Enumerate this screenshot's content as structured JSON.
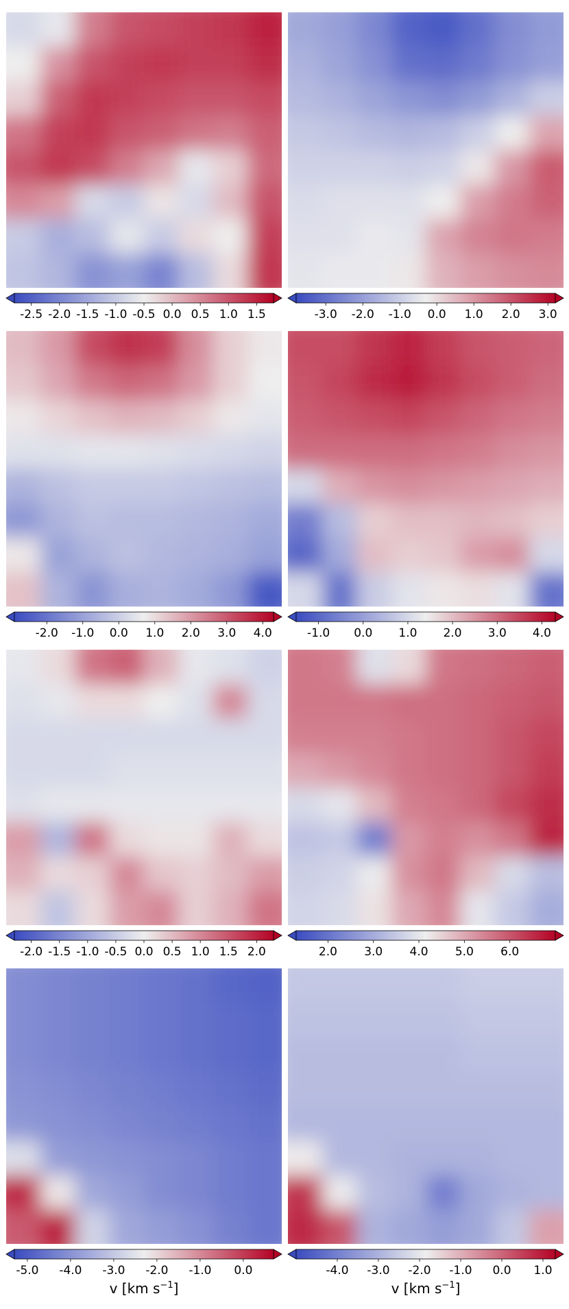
{
  "colormap": {
    "name": "coolwarm",
    "low_color": "#3b4cc0",
    "mid_color": "#eeeeee",
    "high_color": "#b40426"
  },
  "chart_data": [
    {
      "type": "heatmap",
      "title": "",
      "colorbar": {
        "vmin": -2.8,
        "vmax": 1.8,
        "extend": "both",
        "ticks": [
          -2.5,
          -2.0,
          -1.5,
          -1.0,
          -0.5,
          0.0,
          0.5,
          1.0,
          1.5
        ],
        "tick_labels": [
          "-2.5",
          "-2.0",
          "-1.5",
          "-1.0",
          "-0.5",
          "0.0",
          "0.5",
          "1.0",
          "1.5"
        ],
        "label": ""
      },
      "field": [
        [
          -0.8,
          -0.6,
          0.6,
          1.0,
          1.1,
          1.2,
          1.3,
          1.5
        ],
        [
          -0.5,
          0.4,
          1.0,
          1.2,
          1.3,
          1.2,
          1.2,
          1.4
        ],
        [
          -0.2,
          0.9,
          1.3,
          1.2,
          1.1,
          1.0,
          1.0,
          1.1
        ],
        [
          0.7,
          1.2,
          1.3,
          1.0,
          0.9,
          0.7,
          0.6,
          0.9
        ],
        [
          1.0,
          1.3,
          1.1,
          0.6,
          0.2,
          -0.6,
          -0.2,
          0.8
        ],
        [
          0.5,
          0.3,
          -0.8,
          -1.0,
          -0.4,
          -0.8,
          0.0,
          1.0
        ],
        [
          -1.0,
          -1.4,
          -1.2,
          -0.6,
          -1.0,
          -0.3,
          -0.5,
          1.2
        ],
        [
          -1.1,
          -1.3,
          -1.8,
          -1.6,
          -2.0,
          -1.2,
          -0.3,
          1.3
        ]
      ]
    },
    {
      "type": "heatmap",
      "title": "",
      "colorbar": {
        "vmin": -3.8,
        "vmax": 3.2,
        "extend": "both",
        "ticks": [
          -3.0,
          -2.0,
          -1.0,
          0.0,
          1.0,
          2.0,
          3.0
        ],
        "tick_labels": [
          "-3.0",
          "-2.0",
          "-1.0",
          "0.0",
          "1.0",
          "2.0",
          "3.0"
        ],
        "label": ""
      },
      "field": [
        [
          -1.8,
          -2.0,
          -2.5,
          -3.3,
          -3.5,
          -3.0,
          -2.4,
          -2.1
        ],
        [
          -1.6,
          -1.9,
          -2.3,
          -3.0,
          -3.1,
          -2.8,
          -2.3,
          -2.0
        ],
        [
          -1.4,
          -1.6,
          -1.9,
          -2.2,
          -2.4,
          -2.1,
          -1.6,
          -1.0
        ],
        [
          -1.1,
          -1.2,
          -1.4,
          -1.5,
          -1.4,
          -1.0,
          -0.3,
          0.8
        ],
        [
          -0.9,
          -0.9,
          -0.9,
          -1.0,
          -0.9,
          -0.2,
          1.0,
          1.9
        ],
        [
          -0.7,
          -0.6,
          -0.6,
          -0.6,
          -0.3,
          0.9,
          1.4,
          1.8
        ],
        [
          -0.6,
          -0.6,
          -0.4,
          -0.5,
          0.8,
          1.3,
          1.5,
          1.4
        ],
        [
          -0.5,
          -0.4,
          -0.4,
          -0.2,
          0.6,
          0.9,
          1.1,
          1.2
        ]
      ]
    },
    {
      "type": "heatmap",
      "title": "",
      "colorbar": {
        "vmin": -2.9,
        "vmax": 4.3,
        "extend": "both",
        "ticks": [
          -2.0,
          -1.0,
          0.0,
          1.0,
          2.0,
          3.0,
          4.0
        ],
        "tick_labels": [
          "-2.0",
          "-1.0",
          "0.0",
          "1.0",
          "2.0",
          "3.0",
          "4.0"
        ],
        "label": ""
      },
      "field": [
        [
          1.5,
          2.0,
          3.2,
          3.6,
          3.4,
          2.2,
          1.2,
          0.8
        ],
        [
          1.3,
          1.8,
          2.5,
          2.8,
          2.6,
          2.0,
          1.2,
          0.7
        ],
        [
          0.8,
          1.1,
          1.4,
          1.6,
          1.5,
          1.2,
          0.8,
          0.5
        ],
        [
          0.4,
          0.4,
          0.5,
          0.5,
          0.4,
          0.3,
          0.2,
          0.1
        ],
        [
          -0.6,
          -0.3,
          -0.1,
          -0.1,
          -0.1,
          -0.2,
          -0.3,
          -0.4
        ],
        [
          -1.2,
          -0.6,
          -0.3,
          -0.4,
          -0.4,
          -0.5,
          -0.6,
          -0.8
        ],
        [
          0.8,
          -1.0,
          -0.6,
          -0.3,
          -0.5,
          -0.6,
          -0.7,
          -1.0
        ],
        [
          1.4,
          -0.6,
          -1.3,
          -0.7,
          -0.6,
          -0.8,
          -1.2,
          -2.6
        ]
      ]
    },
    {
      "type": "heatmap",
      "title": "",
      "colorbar": {
        "vmin": -1.5,
        "vmax": 4.3,
        "extend": "both",
        "ticks": [
          -1.0,
          0.0,
          1.0,
          2.0,
          3.0,
          4.0
        ],
        "tick_labels": [
          "-1.0",
          "0.0",
          "1.0",
          "2.0",
          "3.0",
          "4.0"
        ],
        "label": ""
      },
      "field": [
        [
          3.4,
          3.4,
          3.7,
          3.9,
          3.6,
          3.3,
          3.2,
          3.1
        ],
        [
          3.3,
          3.5,
          3.8,
          4.0,
          3.7,
          3.4,
          3.2,
          3.0
        ],
        [
          3.2,
          3.3,
          3.4,
          3.5,
          3.3,
          3.1,
          2.9,
          2.8
        ],
        [
          3.0,
          3.0,
          3.0,
          3.0,
          2.9,
          2.8,
          2.6,
          2.5
        ],
        [
          1.0,
          2.2,
          2.5,
          2.6,
          2.5,
          2.4,
          2.3,
          2.2
        ],
        [
          -0.6,
          0.5,
          1.8,
          2.0,
          2.0,
          2.1,
          2.0,
          1.8
        ],
        [
          -1.0,
          0.2,
          2.0,
          1.8,
          1.9,
          2.4,
          2.6,
          1.0
        ],
        [
          1.0,
          -0.8,
          0.8,
          1.2,
          1.5,
          1.6,
          1.2,
          -0.8
        ]
      ]
    },
    {
      "type": "heatmap",
      "title": "",
      "colorbar": {
        "vmin": -2.3,
        "vmax": 2.3,
        "extend": "both",
        "ticks": [
          -2.0,
          -1.5,
          -1.0,
          -0.5,
          0.0,
          0.5,
          1.0,
          1.5,
          2.0
        ],
        "tick_labels": [
          "-2.0",
          "-1.5",
          "-1.0",
          "-0.5",
          "0.0",
          "0.5",
          "1.0",
          "1.5",
          "2.0"
        ],
        "label": ""
      },
      "field": [
        [
          -0.1,
          0.2,
          1.2,
          1.4,
          0.6,
          -0.1,
          -0.2,
          -0.4
        ],
        [
          -0.2,
          -0.1,
          0.2,
          0.2,
          0.0,
          -0.2,
          1.0,
          -0.3
        ],
        [
          -0.3,
          -0.3,
          -0.3,
          -0.3,
          -0.3,
          -0.3,
          -0.3,
          -0.3
        ],
        [
          -0.3,
          -0.3,
          -0.3,
          -0.2,
          -0.2,
          -0.2,
          -0.2,
          -0.2
        ],
        [
          -0.2,
          -0.1,
          -0.1,
          -0.1,
          -0.1,
          -0.1,
          -0.1,
          -0.1
        ],
        [
          0.8,
          -0.8,
          1.2,
          0.2,
          0.1,
          0.1,
          0.6,
          0.2
        ],
        [
          0.6,
          0.2,
          0.3,
          1.0,
          0.4,
          0.3,
          0.5,
          0.8
        ],
        [
          0.2,
          -0.6,
          0.2,
          0.8,
          1.0,
          0.3,
          0.6,
          1.2
        ]
      ]
    },
    {
      "type": "heatmap",
      "title": "",
      "colorbar": {
        "vmin": 1.3,
        "vmax": 7.0,
        "extend": "both",
        "ticks": [
          2.0,
          3.0,
          4.0,
          5.0,
          6.0
        ],
        "tick_labels": [
          "2.0",
          "3.0",
          "4.0",
          "5.0",
          "6.0"
        ],
        "label": ""
      },
      "field": [
        [
          5.6,
          5.5,
          3.9,
          4.4,
          5.6,
          5.7,
          5.8,
          5.9
        ],
        [
          5.6,
          5.6,
          5.6,
          5.7,
          5.7,
          5.8,
          5.9,
          6.0
        ],
        [
          5.5,
          5.5,
          5.5,
          5.6,
          5.7,
          5.8,
          6.0,
          6.2
        ],
        [
          5.0,
          5.2,
          5.4,
          5.6,
          5.7,
          5.8,
          6.0,
          6.3
        ],
        [
          3.8,
          4.0,
          4.8,
          5.5,
          5.6,
          5.8,
          6.2,
          6.5
        ],
        [
          3.4,
          3.5,
          2.2,
          5.2,
          5.5,
          5.3,
          5.6,
          6.6
        ],
        [
          3.6,
          3.7,
          4.1,
          5.3,
          5.6,
          4.8,
          3.8,
          3.3
        ],
        [
          3.7,
          3.8,
          4.3,
          5.0,
          5.4,
          4.0,
          3.5,
          3.0
        ]
      ]
    },
    {
      "type": "heatmap",
      "title": "",
      "colorbar": {
        "vmin": -5.3,
        "vmax": 0.7,
        "extend": "both",
        "ticks": [
          -5.0,
          -4.0,
          -3.0,
          -2.0,
          -1.0,
          0.0
        ],
        "tick_labels": [
          "-5.0",
          "-4.0",
          "-3.0",
          "-2.0",
          "-1.0",
          "0.0"
        ],
        "label": "v [km s⁻¹]"
      },
      "field": [
        [
          -4.1,
          -4.2,
          -4.3,
          -4.4,
          -4.5,
          -4.6,
          -4.8,
          -4.9
        ],
        [
          -4.1,
          -4.2,
          -4.3,
          -4.4,
          -4.5,
          -4.6,
          -4.7,
          -4.8
        ],
        [
          -4.1,
          -4.2,
          -4.3,
          -4.4,
          -4.5,
          -4.6,
          -4.7,
          -4.8
        ],
        [
          -4.0,
          -4.1,
          -4.2,
          -4.3,
          -4.4,
          -4.5,
          -4.6,
          -4.7
        ],
        [
          -3.9,
          -4.0,
          -4.1,
          -4.2,
          -4.3,
          -4.4,
          -4.5,
          -4.6
        ],
        [
          -2.6,
          -3.8,
          -3.9,
          -4.0,
          -4.1,
          -4.2,
          -4.4,
          -4.5
        ],
        [
          0.2,
          -2.2,
          -3.6,
          -3.8,
          -4.1,
          -4.2,
          -4.4,
          -4.5
        ],
        [
          -0.4,
          0.3,
          -2.8,
          -3.6,
          -3.8,
          -4.0,
          -4.3,
          -4.5
        ]
      ]
    },
    {
      "type": "heatmap",
      "title": "",
      "colorbar": {
        "vmin": -5.0,
        "vmax": 1.3,
        "extend": "both",
        "ticks": [
          -4.0,
          -3.0,
          -2.0,
          -1.0,
          0.0,
          1.0
        ],
        "tick_labels": [
          "-4.0",
          "-3.0",
          "-2.0",
          "-1.0",
          "0.0",
          "1.0"
        ],
        "label": "v [km s⁻¹]"
      },
      "field": [
        [
          -2.6,
          -2.6,
          -2.6,
          -2.6,
          -2.6,
          -2.5,
          -2.5,
          -2.5
        ],
        [
          -2.7,
          -2.7,
          -2.7,
          -2.7,
          -2.7,
          -2.6,
          -2.6,
          -2.6
        ],
        [
          -2.8,
          -2.8,
          -2.8,
          -2.8,
          -2.8,
          -2.7,
          -2.7,
          -2.7
        ],
        [
          -2.8,
          -2.8,
          -2.8,
          -2.8,
          -2.8,
          -2.8,
          -2.8,
          -2.8
        ],
        [
          -2.9,
          -2.9,
          -2.9,
          -2.9,
          -2.9,
          -2.9,
          -2.9,
          -2.9
        ],
        [
          -1.8,
          -2.9,
          -2.9,
          -3.0,
          -3.0,
          -3.0,
          -2.9,
          -2.9
        ],
        [
          0.6,
          -1.9,
          -2.8,
          -3.0,
          -4.0,
          -3.2,
          -3.0,
          -2.9
        ],
        [
          0.8,
          0.2,
          -3.0,
          -3.2,
          -3.4,
          -3.2,
          -2.6,
          -0.8
        ]
      ]
    }
  ]
}
